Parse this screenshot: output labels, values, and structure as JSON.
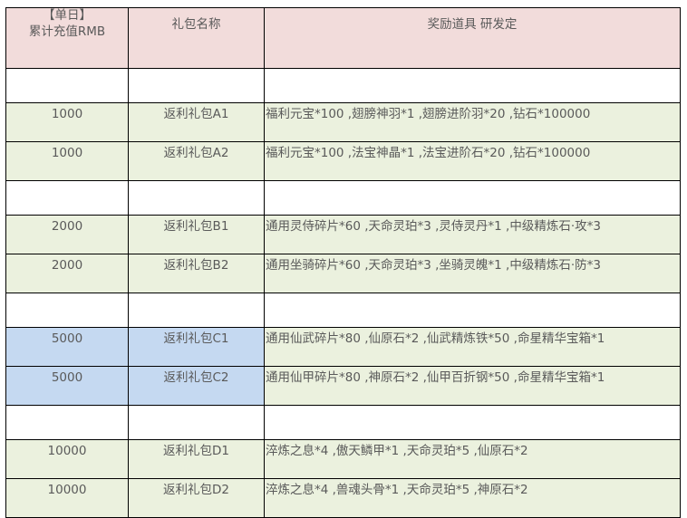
{
  "header": {
    "col1_line1": "【单日】",
    "col1_line2": "累计充值RMB",
    "col2": "礼包名称",
    "col3": "奖励道具 研发定"
  },
  "colors": {
    "header": "#f2dcdb",
    "green": "#ebf1de",
    "blue": "#c5d9f1"
  },
  "rows": [
    {
      "type": "blank"
    },
    {
      "type": "item",
      "color": "green",
      "amount": "1000",
      "name": "返利礼包A1",
      "rewards": "福利元宝*100 ,翅膀神羽*1 ,翅膀进阶羽*20 ,钻石*100000"
    },
    {
      "type": "item",
      "color": "green",
      "amount": "1000",
      "name": "返利礼包A2",
      "rewards": "福利元宝*100 ,法宝神晶*1 ,法宝进阶石*20 ,钻石*100000"
    },
    {
      "type": "blank"
    },
    {
      "type": "item",
      "color": "green",
      "amount": "2000",
      "name": "返利礼包B1",
      "rewards": "通用灵侍碎片*60 ,天命灵珀*3 ,灵侍灵丹*1 ,中级精炼石·攻*3"
    },
    {
      "type": "item",
      "color": "green",
      "amount": "2000",
      "name": "返利礼包B2",
      "rewards": "通用坐骑碎片*60 ,天命灵珀*3 ,坐骑灵魄*1 ,中级精炼石·防*3"
    },
    {
      "type": "blank"
    },
    {
      "type": "item",
      "color": "blue",
      "amount": "5000",
      "name": "返利礼包C1",
      "rewards": "通用仙武碎片*80 ,仙原石*2 ,仙武精炼铁*50 ,命星精华宝箱*1"
    },
    {
      "type": "item",
      "color": "blue",
      "amount": "5000",
      "name": "返利礼包C2",
      "rewards": "通用仙甲碎片*80 ,神原石*2 ,仙甲百折钢*50 ,命星精华宝箱*1"
    },
    {
      "type": "blank"
    },
    {
      "type": "item",
      "color": "green",
      "amount": "10000",
      "name": "返利礼包D1",
      "rewards": "淬炼之息*4 ,傲天鳞甲*1 ,天命灵珀*5 ,仙原石*2"
    },
    {
      "type": "item",
      "color": "green",
      "amount": "10000",
      "name": "返利礼包D2",
      "rewards": "淬炼之息*4 ,兽魂头骨*1 ,天命灵珀*5 ,神原石*2"
    }
  ]
}
